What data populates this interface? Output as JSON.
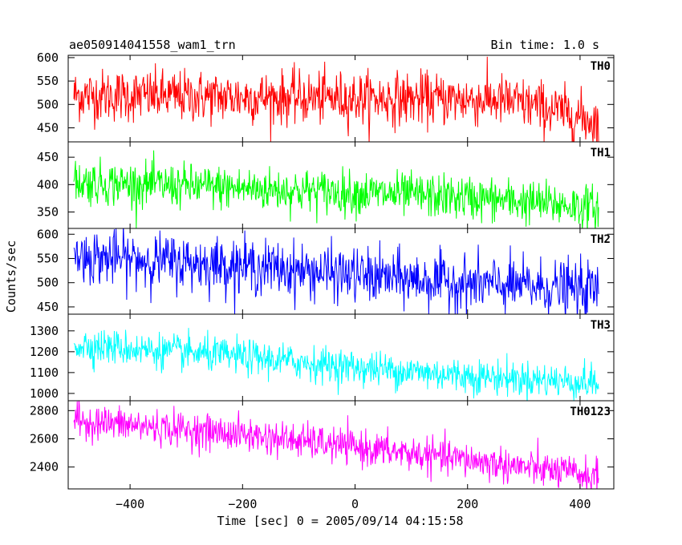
{
  "chart_data": {
    "type": "line",
    "title": "ae050914041558_wam1_trn",
    "subtitle": "Bin time: 1.0 s",
    "xlabel": "Time [sec] 0 = 2005/09/14 04:15:58",
    "ylabel": "Counts/sec",
    "xlim": [
      -510,
      460
    ],
    "x_ticks": [
      -400,
      -200,
      0,
      200,
      400
    ],
    "x_tick_labels": [
      "−400",
      "−200",
      "0",
      "200",
      "400"
    ],
    "x_range": [
      -500,
      433
    ],
    "bin_time": 1.0,
    "grid": false,
    "panels": [
      {
        "name": "TH0",
        "color": "#ff0000",
        "ylim": [
          420,
          605
        ],
        "y_ticks": [
          450,
          500,
          550,
          600
        ],
        "trend": [
          {
            "x": -500,
            "y": 520
          },
          {
            "x": -300,
            "y": 517
          },
          {
            "x": -100,
            "y": 514
          },
          {
            "x": 100,
            "y": 512
          },
          {
            "x": 250,
            "y": 510
          },
          {
            "x": 330,
            "y": 495
          },
          {
            "x": 433,
            "y": 462
          }
        ],
        "noise_sigma": 28
      },
      {
        "name": "TH1",
        "color": "#00ff00",
        "ylim": [
          320,
          478
        ],
        "y_ticks": [
          350,
          400,
          450
        ],
        "trend": [
          {
            "x": -500,
            "y": 405
          },
          {
            "x": -200,
            "y": 393
          },
          {
            "x": 0,
            "y": 385
          },
          {
            "x": 200,
            "y": 376
          },
          {
            "x": 433,
            "y": 358
          }
        ],
        "noise_sigma": 20
      },
      {
        "name": "TH2",
        "color": "#0000ff",
        "ylim": [
          435,
          612
        ],
        "y_ticks": [
          450,
          500,
          550,
          600
        ],
        "trend": [
          {
            "x": -500,
            "y": 555
          },
          {
            "x": -200,
            "y": 535
          },
          {
            "x": 0,
            "y": 515
          },
          {
            "x": 200,
            "y": 498
          },
          {
            "x": 433,
            "y": 485
          }
        ],
        "noise_sigma": 28
      },
      {
        "name": "TH3",
        "color": "#00ffff",
        "ylim": [
          965,
          1380
        ],
        "y_ticks": [
          1000,
          1100,
          1200,
          1300
        ],
        "trend": [
          {
            "x": -500,
            "y": 1235
          },
          {
            "x": -200,
            "y": 1175
          },
          {
            "x": 0,
            "y": 1125
          },
          {
            "x": 200,
            "y": 1085
          },
          {
            "x": 433,
            "y": 1050
          }
        ],
        "noise_sigma": 42
      },
      {
        "name": "TH0123",
        "color": "#ff00ff",
        "ylim": [
          2245,
          2870
        ],
        "y_ticks": [
          2400,
          2600,
          2800
        ],
        "trend": [
          {
            "x": -500,
            "y": 2730
          },
          {
            "x": -200,
            "y": 2630
          },
          {
            "x": 0,
            "y": 2540
          },
          {
            "x": 200,
            "y": 2450
          },
          {
            "x": 433,
            "y": 2330
          }
        ],
        "noise_sigma": 62
      }
    ]
  }
}
